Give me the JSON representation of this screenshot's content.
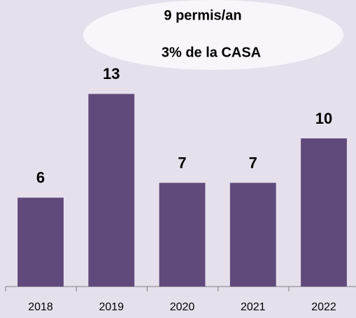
{
  "chart_data": {
    "type": "bar",
    "annotations": [
      "9 permis/an",
      "3% de la CASA"
    ],
    "categories": [
      "2018",
      "2019",
      "2020",
      "2021",
      "2022"
    ],
    "values": [
      6,
      13,
      7,
      7,
      10
    ],
    "color": "#604a7b",
    "ylim": [
      0,
      15
    ]
  }
}
